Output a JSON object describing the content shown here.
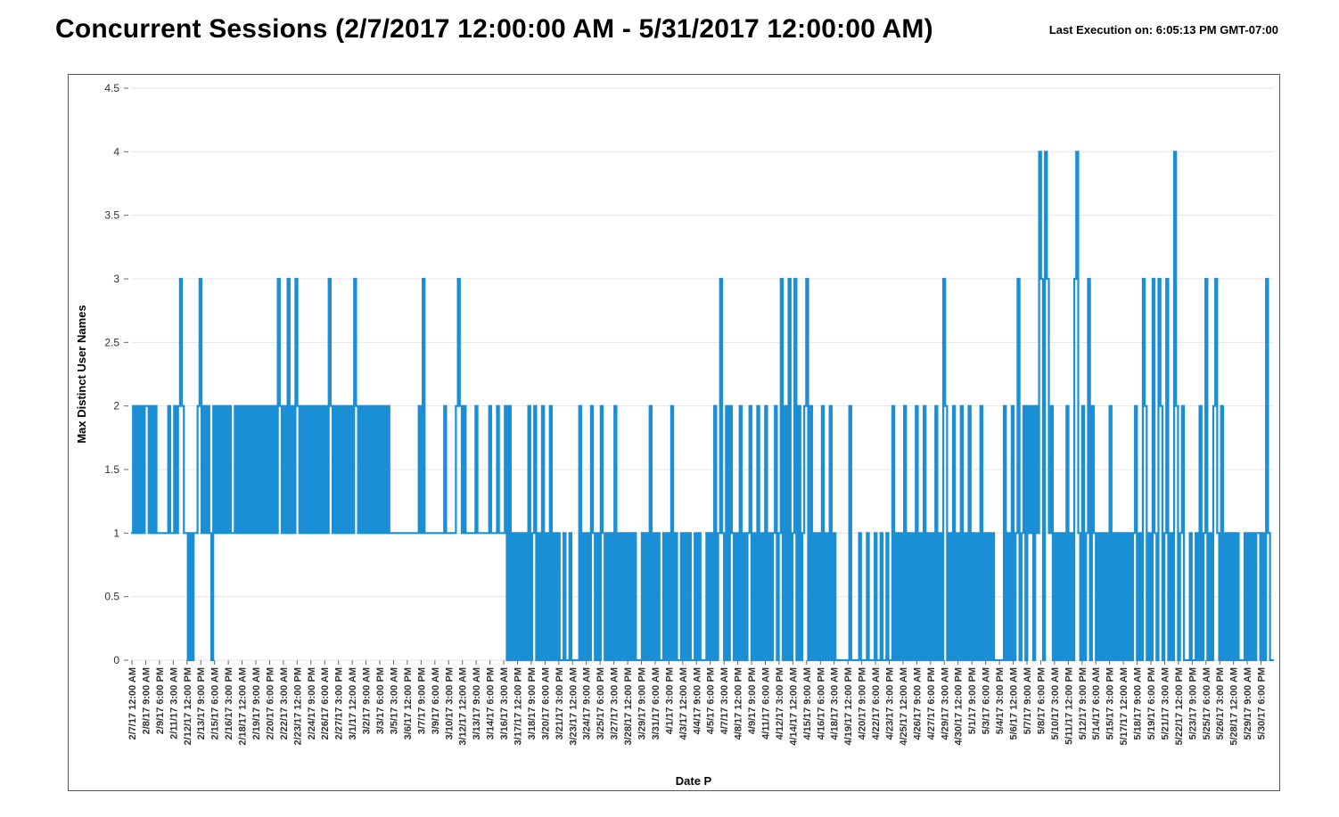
{
  "header": {
    "title": "Concurrent Sessions (2/7/2017 12:00:00 AM - 5/31/2017 12:00:00 AM)",
    "last_execution": "Last Execution on: 6:05:13 PM GMT-07:00"
  },
  "chart_data": {
    "type": "line",
    "title": "Concurrent Sessions (2/7/2017 12:00:00 AM - 5/31/2017 12:00:00 AM)",
    "xlabel": "Date P",
    "ylabel": "Max Distinct User Names",
    "ylim": [
      0,
      4.5
    ],
    "yticks": [
      "0",
      "0.5",
      "1",
      "1.5",
      "2",
      "2.5",
      "3",
      "3.5",
      "4",
      "4.5"
    ],
    "grid": true,
    "legend": "none",
    "color": "#1b8fd6",
    "x_tick_labels": [
      "2/7/17 12:00 AM",
      "2/8/17 9:00 AM",
      "2/9/17 6:00 PM",
      "2/11/17 3:00 AM",
      "2/12/17 12:00 PM",
      "2/13/17 9:00 PM",
      "2/15/17 6:00 AM",
      "2/16/17 3:00 PM",
      "2/18/17 12:00 AM",
      "2/19/17 9:00 AM",
      "2/20/17 6:00 PM",
      "2/22/17 3:00 AM",
      "2/23/17 12:00 PM",
      "2/24/17 9:00 PM",
      "2/26/17 6:00 AM",
      "2/27/17 3:00 PM",
      "3/1/17 12:00 AM",
      "3/2/17 9:00 AM",
      "3/3/17 6:00 PM",
      "3/5/17 3:00 AM",
      "3/6/17 12:00 PM",
      "3/7/17 9:00 PM",
      "3/9/17 6:00 AM",
      "3/10/17 3:00 PM",
      "3/12/17 12:00 AM",
      "3/13/17 9:00 AM",
      "3/14/17 6:00 PM",
      "3/16/17 3:00 AM",
      "3/17/17 12:00 PM",
      "3/18/17 9:00 PM",
      "3/20/17 6:00 AM",
      "3/21/17 3:00 PM",
      "3/23/17 12:00 AM",
      "3/24/17 9:00 AM",
      "3/25/17 6:00 PM",
      "3/27/17 3:00 AM",
      "3/28/17 12:00 PM",
      "3/29/17 9:00 PM",
      "3/31/17 6:00 AM",
      "4/1/17 3:00 PM",
      "4/3/17 12:00 AM",
      "4/4/17 9:00 AM",
      "4/5/17 6:00 PM",
      "4/7/17 3:00 AM",
      "4/8/17 12:00 PM",
      "4/9/17 9:00 PM",
      "4/11/17 6:00 AM",
      "4/12/17 3:00 PM",
      "4/14/17 12:00 AM",
      "4/15/17 9:00 AM",
      "4/16/17 6:00 PM",
      "4/18/17 3:00 AM",
      "4/19/17 12:00 PM",
      "4/20/17 9:00 PM",
      "4/22/17 6:00 AM",
      "4/23/17 3:00 PM",
      "4/25/17 12:00 AM",
      "4/26/17 9:00 AM",
      "4/27/17 6:00 PM",
      "4/29/17 3:00 AM",
      "4/30/17 12:00 PM",
      "5/1/17 9:00 PM",
      "5/3/17 6:00 AM",
      "5/4/17 3:00 PM",
      "5/6/17 12:00 AM",
      "5/7/17 9:00 AM",
      "5/8/17 6:00 PM",
      "5/10/17 3:00 AM",
      "5/11/17 12:00 PM",
      "5/12/17 9:00 PM",
      "5/14/17 6:00 AM",
      "5/15/17 3:00 PM",
      "5/17/17 12:00 AM",
      "5/18/17 9:00 AM",
      "5/19/17 6:00 PM",
      "5/21/17 3:00 AM",
      "5/22/17 12:00 PM",
      "5/23/17 9:00 PM",
      "5/25/17 6:00 AM",
      "5/26/17 3:00 PM",
      "5/28/17 12:00 AM",
      "5/29/17 9:00 AM",
      "5/30/17 6:00 PM"
    ],
    "series": [
      {
        "values": [
          1,
          2,
          1,
          2,
          1,
          2,
          1,
          2,
          2,
          1,
          2,
          1,
          2,
          1,
          1,
          1,
          1,
          1,
          1,
          2,
          1,
          1,
          2,
          1,
          2,
          3,
          2,
          1,
          1,
          0,
          1,
          0,
          1,
          1,
          2,
          3,
          1,
          2,
          1,
          2,
          1,
          0,
          2,
          1,
          2,
          1,
          2,
          1,
          2,
          1,
          2,
          1,
          1,
          2,
          1,
          2,
          1,
          2,
          1,
          2,
          1,
          2,
          1,
          2,
          1,
          2,
          1,
          2,
          1,
          2,
          1,
          2,
          1,
          2,
          1,
          3,
          2,
          1,
          2,
          1,
          3,
          1,
          2,
          1,
          3,
          2,
          1,
          2,
          1,
          2,
          1,
          2,
          1,
          2,
          1,
          2,
          1,
          2,
          1,
          2,
          1,
          3,
          2,
          1,
          2,
          1,
          2,
          1,
          2,
          1,
          2,
          1,
          2,
          1,
          3,
          2,
          1,
          2,
          1,
          2,
          1,
          2,
          1,
          2,
          1,
          2,
          1,
          2,
          1,
          2,
          1,
          2,
          1,
          1,
          1,
          1,
          1,
          1,
          1,
          1,
          1,
          1,
          1,
          1,
          1,
          1,
          1,
          2,
          1,
          3,
          1,
          1,
          1,
          1,
          1,
          1,
          1,
          1,
          1,
          1,
          2,
          1,
          1,
          1,
          1,
          1,
          2,
          3,
          2,
          1,
          2,
          1,
          1,
          1,
          1,
          1,
          2,
          1,
          1,
          1,
          1,
          1,
          1,
          2,
          1,
          1,
          1,
          2,
          1,
          1,
          1,
          2,
          0,
          2,
          0,
          1,
          0,
          1,
          0,
          1,
          0,
          1,
          0,
          2,
          0,
          1,
          2,
          0,
          1,
          0,
          2,
          0,
          1,
          0,
          2,
          0,
          1,
          0,
          1,
          0,
          0,
          1,
          0,
          0,
          1,
          0,
          0,
          0,
          0,
          2,
          0,
          1,
          0,
          1,
          0,
          2,
          1,
          0,
          1,
          0,
          2,
          1,
          0,
          1,
          0,
          1,
          0,
          2,
          0,
          1,
          0,
          1,
          0,
          1,
          0,
          1,
          0,
          1,
          0,
          0,
          0,
          1,
          0,
          1,
          0,
          2,
          0,
          1,
          0,
          1,
          0,
          0,
          1,
          0,
          1,
          0,
          2,
          0,
          1,
          0,
          0,
          1,
          0,
          1,
          0,
          1,
          0,
          0,
          1,
          0,
          1,
          0,
          0,
          0,
          1,
          0,
          1,
          0,
          2,
          0,
          1,
          3,
          1,
          0,
          2,
          0,
          2,
          1,
          0,
          1,
          0,
          2,
          0,
          1,
          0,
          1,
          2,
          0,
          1,
          0,
          2,
          0,
          1,
          0,
          2,
          0,
          1,
          0,
          1,
          2,
          0,
          1,
          3,
          0,
          2,
          0,
          3,
          0,
          1,
          3,
          0,
          2,
          0,
          1,
          2,
          3,
          0,
          2,
          0,
          1,
          0,
          1,
          0,
          2,
          0,
          1,
          0,
          2,
          0,
          1,
          0,
          0,
          0,
          0,
          0,
          0,
          0,
          2,
          0,
          0,
          0,
          0,
          1,
          0,
          0,
          0,
          1,
          0,
          0,
          0,
          1,
          0,
          0,
          1,
          0,
          0,
          1,
          0,
          0,
          2,
          0,
          1,
          0,
          1,
          0,
          2,
          0,
          1,
          0,
          1,
          0,
          2,
          0,
          1,
          0,
          2,
          0,
          1,
          0,
          1,
          0,
          2,
          0,
          1,
          0,
          3,
          2,
          0,
          1,
          0,
          2,
          0,
          1,
          0,
          2,
          0,
          1,
          0,
          2,
          0,
          1,
          0,
          1,
          0,
          2,
          0,
          1,
          0,
          1,
          0,
          1,
          0,
          0,
          0,
          0,
          0,
          2,
          0,
          1,
          0,
          2,
          0,
          1,
          3,
          0,
          1,
          2,
          0,
          2,
          1,
          2,
          0,
          2,
          1,
          4,
          3,
          0,
          4,
          3,
          1,
          2,
          0,
          1,
          0,
          1,
          0,
          1,
          0,
          2,
          0,
          1,
          0,
          3,
          4,
          1,
          0,
          2,
          0,
          1,
          3,
          0,
          2,
          1,
          0,
          1,
          0,
          1,
          0,
          1,
          0,
          2,
          0,
          1,
          0,
          1,
          0,
          1,
          0,
          1,
          0,
          1,
          0,
          1,
          2,
          0,
          1,
          0,
          3,
          2,
          0,
          1,
          0,
          3,
          1,
          0,
          3,
          2,
          0,
          1,
          3,
          0,
          1,
          0,
          4,
          2,
          0,
          1,
          2,
          0,
          0,
          0,
          1,
          0,
          0,
          1,
          0,
          2,
          0,
          1,
          3,
          0,
          1,
          0,
          2,
          3,
          1,
          0,
          2,
          0,
          1,
          0,
          1,
          0,
          1,
          0,
          1,
          0,
          0,
          0,
          1,
          0,
          1,
          0,
          1,
          0,
          1,
          1,
          0,
          1,
          0,
          3,
          1,
          0,
          0,
          0
        ]
      }
    ]
  }
}
